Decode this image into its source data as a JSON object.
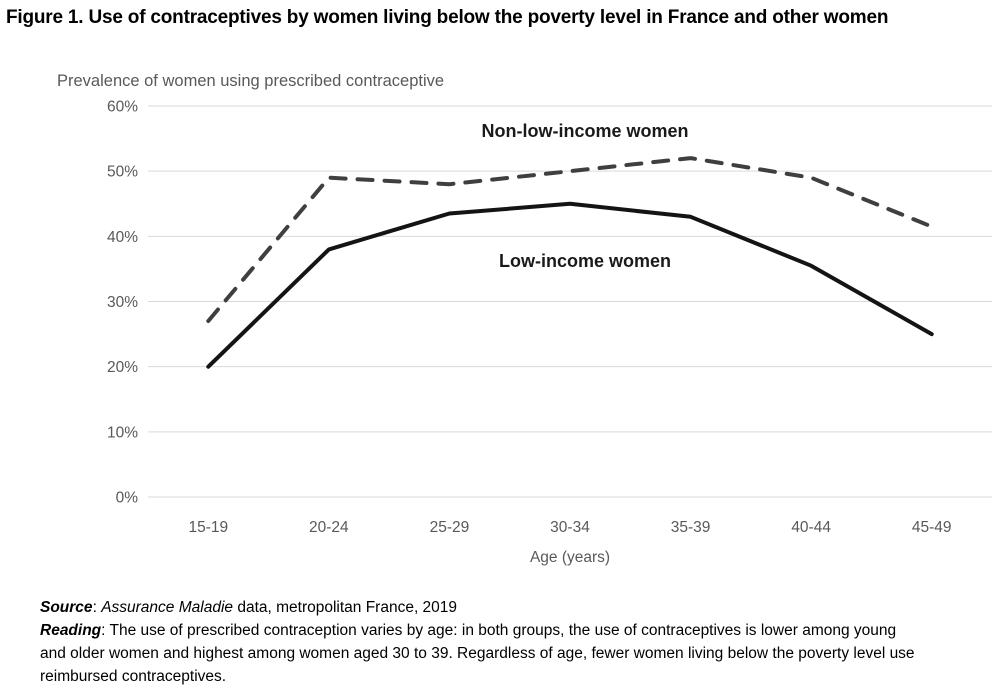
{
  "figure": {
    "title": "Figure 1. Use of contraceptives by women living below the poverty level in France and other women"
  },
  "chart_data": {
    "type": "line",
    "title": "Prevalence of women using prescribed contraceptive",
    "categories": [
      "15-19",
      "20-24",
      "25-29",
      "30-34",
      "35-39",
      "40-44",
      "45-49"
    ],
    "series": [
      {
        "name": "Non-low-income women",
        "values": [
          27,
          49,
          48,
          50,
          52,
          49,
          41.5
        ],
        "style": "dashed",
        "color": "#3f3f3f"
      },
      {
        "name": "Low-income women",
        "values": [
          20,
          38,
          43.5,
          45,
          43,
          35.5,
          25
        ],
        "style": "solid",
        "color": "#141414"
      }
    ],
    "xlabel": "Age (years)",
    "ylabel": "Prevalence of women using prescribed contraceptive",
    "ylim": [
      0,
      60
    ],
    "ytick_step": 10,
    "ytick_suffix": "%",
    "grid": true,
    "gridline_color": "#d9d9d9",
    "axis_label_color": "#595959",
    "legend_position": "inline-labels-on-plot"
  },
  "notes": {
    "source_label": "Source",
    "source_sep": ": ",
    "source_italic": "Assurance Maladie",
    "source_rest": " data, metropolitan France, 2019",
    "reading_label": "Reading",
    "reading_rest": ": The use of prescribed contraception varies by age: in both groups, the use of contraceptives is lower among young and older women and highest among women aged 30 to 39. Regardless of age, fewer women living below the poverty level use reimbursed contraceptives."
  }
}
